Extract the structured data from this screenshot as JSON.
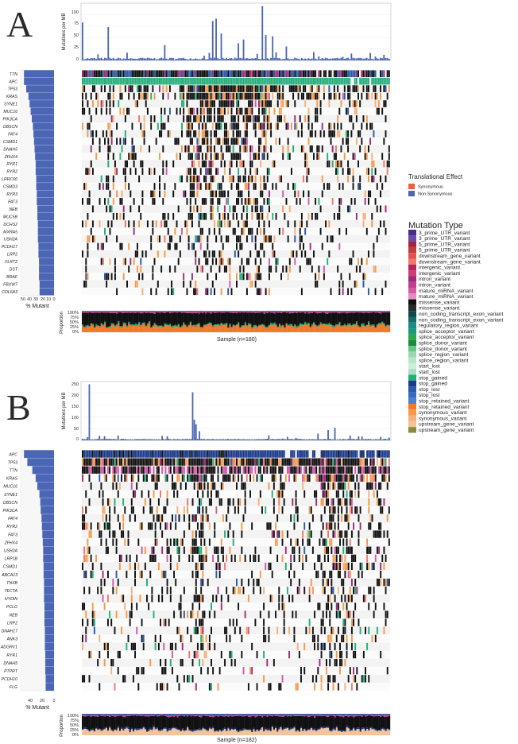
{
  "panels": [
    {
      "letter": "A",
      "tmb_ylabel": "Mutations per MB",
      "tmb_ticks": [
        "0",
        "25",
        "50",
        "75",
        "100"
      ],
      "pct_ticks": [
        "50",
        "40",
        "30",
        "20",
        "10",
        "0"
      ],
      "pct_xlabel": "% Mutant",
      "prop_ylabel": "Proportion",
      "prop_ticks": [
        "100%",
        "75%",
        "50%",
        "25%",
        "0%"
      ],
      "sample_label": "Sample (n=180)"
    },
    {
      "letter": "B",
      "tmb_ylabel": "Mutations per MB",
      "tmb_ticks": [
        "0",
        "50",
        "100",
        "150",
        "200",
        "250"
      ],
      "pct_ticks": [
        "40",
        "20",
        "0"
      ],
      "pct_xlabel": "% Mutant",
      "prop_ylabel": "Proportion",
      "prop_ticks": [
        "100%",
        "75%",
        "50%",
        "25%",
        "0%"
      ],
      "sample_label": "Sample (n=182)"
    }
  ],
  "legend": {
    "effect_title": "Translational Effect",
    "effect_items": [
      {
        "label": "Synonymous",
        "color": "#e8643c"
      },
      {
        "label": "Non Synonymous",
        "color": "#4a66b4"
      }
    ],
    "type_title": "Mutation Type",
    "type_items": [
      {
        "label": "3_prime_UTR_variant",
        "color": "#4b2a8a"
      },
      {
        "label": "3_prime_UTR_variant",
        "color": "#6a4aa8"
      },
      {
        "label": "5_prime_UTR_variant",
        "color": "#a3243c"
      },
      {
        "label": "5_prime_UTR_variant",
        "color": "#c73a3a"
      },
      {
        "label": "downstream_gene_variant",
        "color": "#e05252"
      },
      {
        "label": "downstream_gene_variant",
        "color": "#ee7a6a"
      },
      {
        "label": "intergenic_variant",
        "color": "#b8245a"
      },
      {
        "label": "intergenic_variant",
        "color": "#cf3d78"
      },
      {
        "label": "intron_variant",
        "color": "#a02a7a"
      },
      {
        "label": "intron_variant",
        "color": "#c23c94"
      },
      {
        "label": "mature_miRNA_variant",
        "color": "#d45aa8"
      },
      {
        "label": "mature_miRNA_variant",
        "color": "#e58cc2"
      },
      {
        "label": "missense_variant",
        "color": "#111111"
      },
      {
        "label": "missense_variant",
        "color": "#2a2a2a"
      },
      {
        "label": "non_coding_transcript_exon_variant",
        "color": "#0e4a4a"
      },
      {
        "label": "non_coding_transcript_exon_variant",
        "color": "#1a6a6a"
      },
      {
        "label": "regulatory_region_variant",
        "color": "#1a8a8a"
      },
      {
        "label": "splice_acceptor_variant",
        "color": "#1a9a7a"
      },
      {
        "label": "splice_acceptor_variant",
        "color": "#2aa84a"
      },
      {
        "label": "splice_donor_variant",
        "color": "#1e8a3a"
      },
      {
        "label": "splice_donor_variant",
        "color": "#6ac48a"
      },
      {
        "label": "splice_region_variant",
        "color": "#9ad8b0"
      },
      {
        "label": "splice_region_variant",
        "color": "#b8e6c8"
      },
      {
        "label": "start_lost",
        "color": "#cdeed8"
      },
      {
        "label": "start_lost",
        "color": "#a8e0c0"
      },
      {
        "label": "stop_gained",
        "color": "#22b07a"
      },
      {
        "label": "stop_gained",
        "color": "#1a3a8a"
      },
      {
        "label": "stop_lost",
        "color": "#2a5aaa"
      },
      {
        "label": "stop_lost",
        "color": "#3a6ac0"
      },
      {
        "label": "stop_retained_variant",
        "color": "#4a80d0"
      },
      {
        "label": "stop_retained_variant",
        "color": "#f07a2a"
      },
      {
        "label": "synonymous_variant",
        "color": "#f59a4a"
      },
      {
        "label": "synonymous_variant",
        "color": "#f8b07a"
      },
      {
        "label": "upstream_gene_variant",
        "color": "#f5c29a"
      },
      {
        "label": "upstream_gene_variant",
        "color": "#8a8a3a"
      }
    ]
  },
  "chart_data": [
    {
      "type": "bar",
      "title": "",
      "ylabel": "Mutations per MB",
      "ylim": [
        0,
        120
      ],
      "values_summary": "per-sample tumor mutational burden, 180 samples; peaks near 80, 70, 85, 90, 117",
      "peaks": [
        {
          "sample": 1,
          "value": 82
        },
        {
          "sample": 16,
          "value": 72
        },
        {
          "sample": 49,
          "value": 33
        },
        {
          "sample": 77,
          "value": 85
        },
        {
          "sample": 79,
          "value": 90
        },
        {
          "sample": 82,
          "value": 58
        },
        {
          "sample": 92,
          "value": 37
        },
        {
          "sample": 95,
          "value": 45
        },
        {
          "sample": 106,
          "value": 117
        },
        {
          "sample": 108,
          "value": 55
        },
        {
          "sample": 112,
          "value": 52
        },
        {
          "sample": 120,
          "value": 30
        }
      ]
    },
    {
      "type": "bar",
      "orientation": "horizontal",
      "xlabel": "% Mutant",
      "categories": [
        "TTN",
        "APC",
        "TP53",
        "KRAS",
        "SYNE1",
        "MUC16",
        "PIK3CA",
        "OBSCN",
        "FAT4",
        "CSMD1",
        "DNAH5",
        "ZFHX4",
        "RYR1",
        "RYR2",
        "LRRC60",
        "CSMD3",
        "RYR3",
        "FAT3",
        "NEB",
        "MUC5B",
        "DCHS2",
        "MXRA5",
        "USH2A",
        "PCDH17",
        "LRP2",
        "FLRT2",
        "DST",
        "BRAF",
        "FBXW7",
        "COL6A3"
      ],
      "values": [
        54,
        54,
        50,
        46,
        44,
        42,
        40,
        38,
        37,
        36,
        35,
        34,
        33,
        33,
        32,
        32,
        31,
        31,
        30,
        30,
        29,
        29,
        29,
        28,
        28,
        27,
        27,
        27,
        26,
        26
      ]
    },
    {
      "type": "bar",
      "title": "",
      "ylabel": "Mutations per MB",
      "ylim": [
        0,
        250
      ],
      "values_summary": "per-sample tumor mutational burden, 182 samples; peaks near 245 and 210",
      "peaks": [
        {
          "sample": 5,
          "value": 245
        },
        {
          "sample": 66,
          "value": 210
        },
        {
          "sample": 67,
          "value": 90
        },
        {
          "sample": 68,
          "value": 70
        },
        {
          "sample": 70,
          "value": 40
        },
        {
          "sample": 140,
          "value": 30
        },
        {
          "sample": 146,
          "value": 45
        },
        {
          "sample": 150,
          "value": 55
        }
      ]
    },
    {
      "type": "bar",
      "orientation": "horizontal",
      "xlabel": "% Mutant",
      "categories": [
        "APC",
        "TP53",
        "TTN",
        "KRAS",
        "MUC16",
        "SYNE1",
        "OBSCN",
        "PIK3CA",
        "FAT4",
        "RYR2",
        "FAT3",
        "ZFHX4",
        "USH2A",
        "LRP1B",
        "CSMD1",
        "ABCA13",
        "TNXB",
        "TECTA",
        "HYDIN",
        "PCLO",
        "NEB",
        "LRP2",
        "DNAH17",
        "ANK3",
        "ADGRV1",
        "RYR1",
        "DNAH5",
        "PTPRT",
        "PCDH10",
        "FLG"
      ],
      "values": [
        72,
        64,
        52,
        44,
        40,
        35,
        33,
        32,
        30,
        29,
        28,
        27,
        26,
        26,
        25,
        25,
        24,
        24,
        24,
        23,
        23,
        23,
        22,
        22,
        22,
        21,
        21,
        21,
        20,
        20
      ]
    }
  ]
}
